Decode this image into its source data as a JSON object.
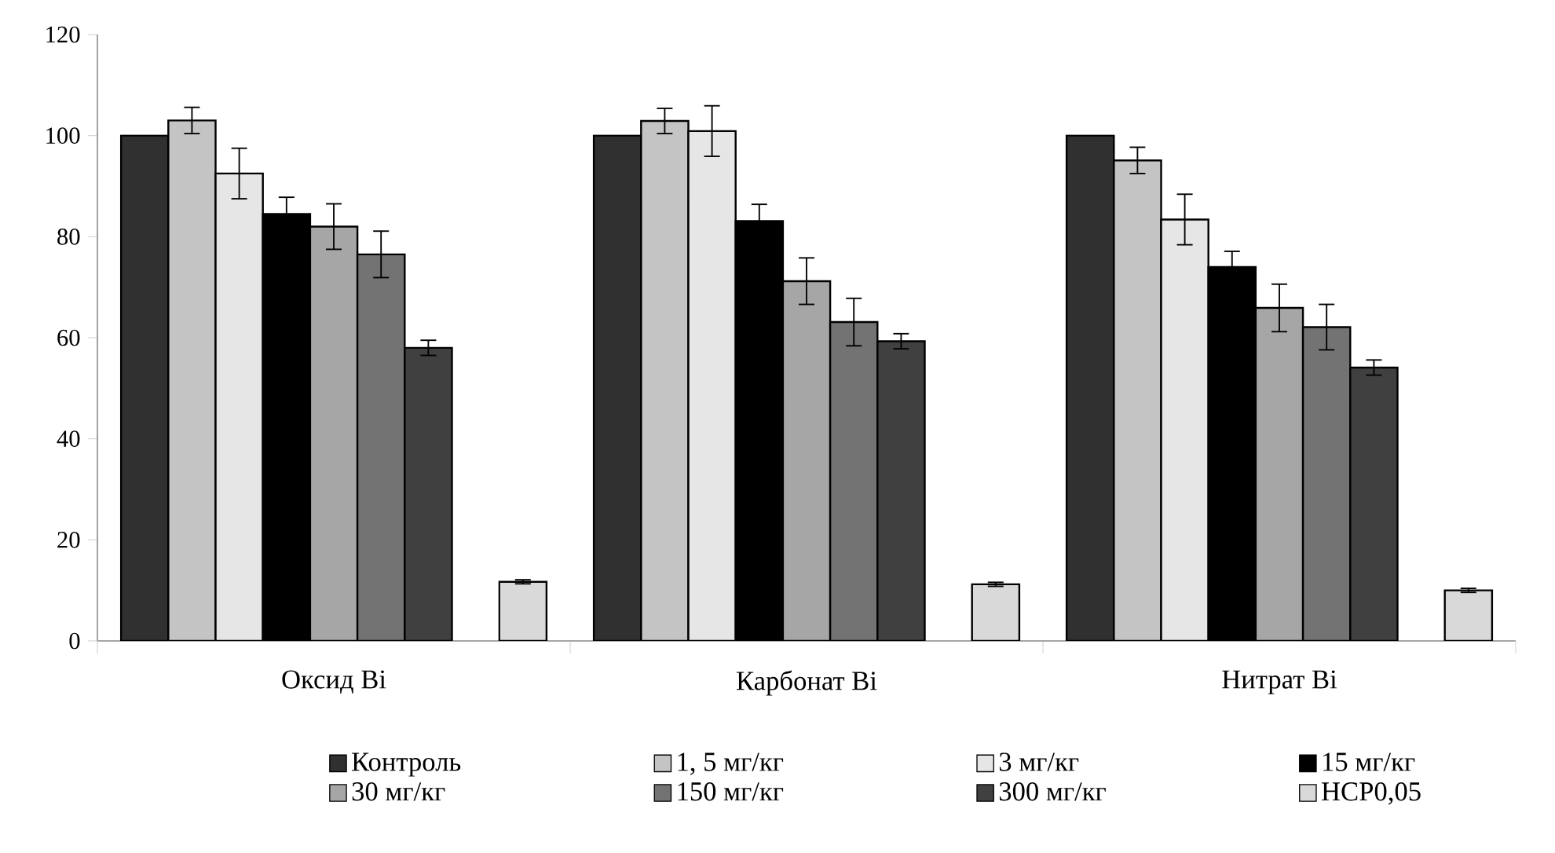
{
  "chart_data": {
    "type": "bar",
    "categories": [
      "Оксид Bi",
      "Карбонат Bi",
      "Нитрат Bi"
    ],
    "series": [
      {
        "name": "Контроль",
        "color": "#303030",
        "values": [
          100,
          100,
          100
        ],
        "errors": [
          null,
          null,
          null
        ]
      },
      {
        "name": "1, 5 мг/кг",
        "color": "#c4c4c4",
        "values": [
          103,
          102.9,
          95.1
        ],
        "errors": [
          2.6,
          2.5,
          2.6
        ]
      },
      {
        "name": "3 мг/кг",
        "color": "#e6e6e6",
        "values": [
          92.5,
          100.9,
          83.4
        ],
        "errors": [
          5,
          5,
          5
        ]
      },
      {
        "name": "15 мг/кг",
        "color": "#000000",
        "values": [
          84.5,
          83.1,
          74
        ],
        "errors": [
          3.3,
          3.3,
          3.1
        ]
      },
      {
        "name": "30 мг/кг",
        "color": "#a6a6a6",
        "values": [
          82,
          71.2,
          65.9
        ],
        "errors": [
          4.5,
          4.6,
          4.7
        ]
      },
      {
        "name": "150 мг/кг",
        "color": "#737373",
        "values": [
          76.5,
          63.1,
          62.1
        ],
        "errors": [
          4.6,
          4.7,
          4.5
        ]
      },
      {
        "name": "300 мг/кг",
        "color": "#404040",
        "values": [
          58,
          59.3,
          54.1
        ],
        "errors": [
          1.5,
          1.5,
          1.5
        ]
      },
      {
        "name": "НСР0,05",
        "color": "#d9d9d9",
        "values": [
          11.7,
          11.2,
          10
        ],
        "errors": [
          0.4,
          0.4,
          0.4
        ]
      }
    ],
    "ylim": [
      0,
      120
    ],
    "yticks": [
      0,
      20,
      40,
      60,
      80,
      100,
      120
    ],
    "grid": false,
    "legend": "bottom"
  }
}
